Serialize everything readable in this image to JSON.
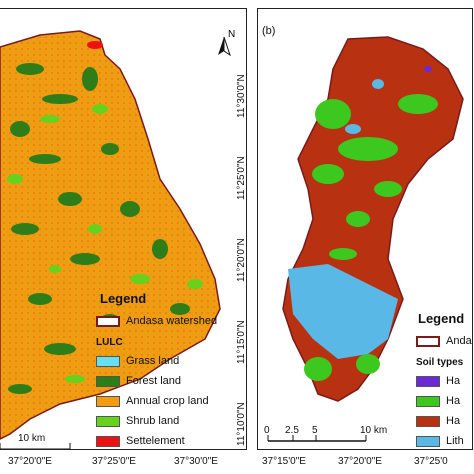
{
  "panel_a": {
    "north_label": "N",
    "legend": {
      "title": "Legend",
      "boundary_label": "Andasa watershed",
      "group_label": "LULC",
      "items": [
        {
          "label": "Grass land",
          "color": "#66e0f0"
        },
        {
          "label": "Forest land",
          "color": "#2e7d18"
        },
        {
          "label": "Annual crop land",
          "color": "#f39c12"
        },
        {
          "label": "Shrub land",
          "color": "#66d21e"
        },
        {
          "label": "Settelement",
          "color": "#ee1111"
        }
      ]
    },
    "scale_label": "10 km",
    "x_ticks": [
      "37°20'0\"E",
      "37°25'0\"E",
      "37°30'0\"E"
    ]
  },
  "panel_b": {
    "panel_label": "(b)",
    "legend": {
      "title": "Legend",
      "boundary_label": "Anda",
      "group_label": "Soil types",
      "items": [
        {
          "label": "Ha",
          "color": "#6a2bd6"
        },
        {
          "label": "Ha",
          "color": "#3cc81e"
        },
        {
          "label": "Ha",
          "color": "#b83212"
        },
        {
          "label": "Lith",
          "color": "#5ab8e6"
        }
      ]
    },
    "scale_ticks": [
      "0",
      "2.5",
      "5",
      "10 km"
    ],
    "x_ticks": [
      "37°15'0\"E",
      "37°20'0\"E",
      "37°25'0"
    ],
    "y_ticks": [
      "11°30'0\"N",
      "11°25'0\"N",
      "11°20'0\"N",
      "11°15'0\"N",
      "11°10'0\"N"
    ]
  },
  "colors": {
    "crop": "#f39c12",
    "forest": "#2e7d18",
    "shrub": "#66d21e",
    "clay": "#b83212",
    "soil_green": "#3cc81e",
    "soil_blue": "#5ab8e6",
    "boundary": "#7a1a1a"
  }
}
